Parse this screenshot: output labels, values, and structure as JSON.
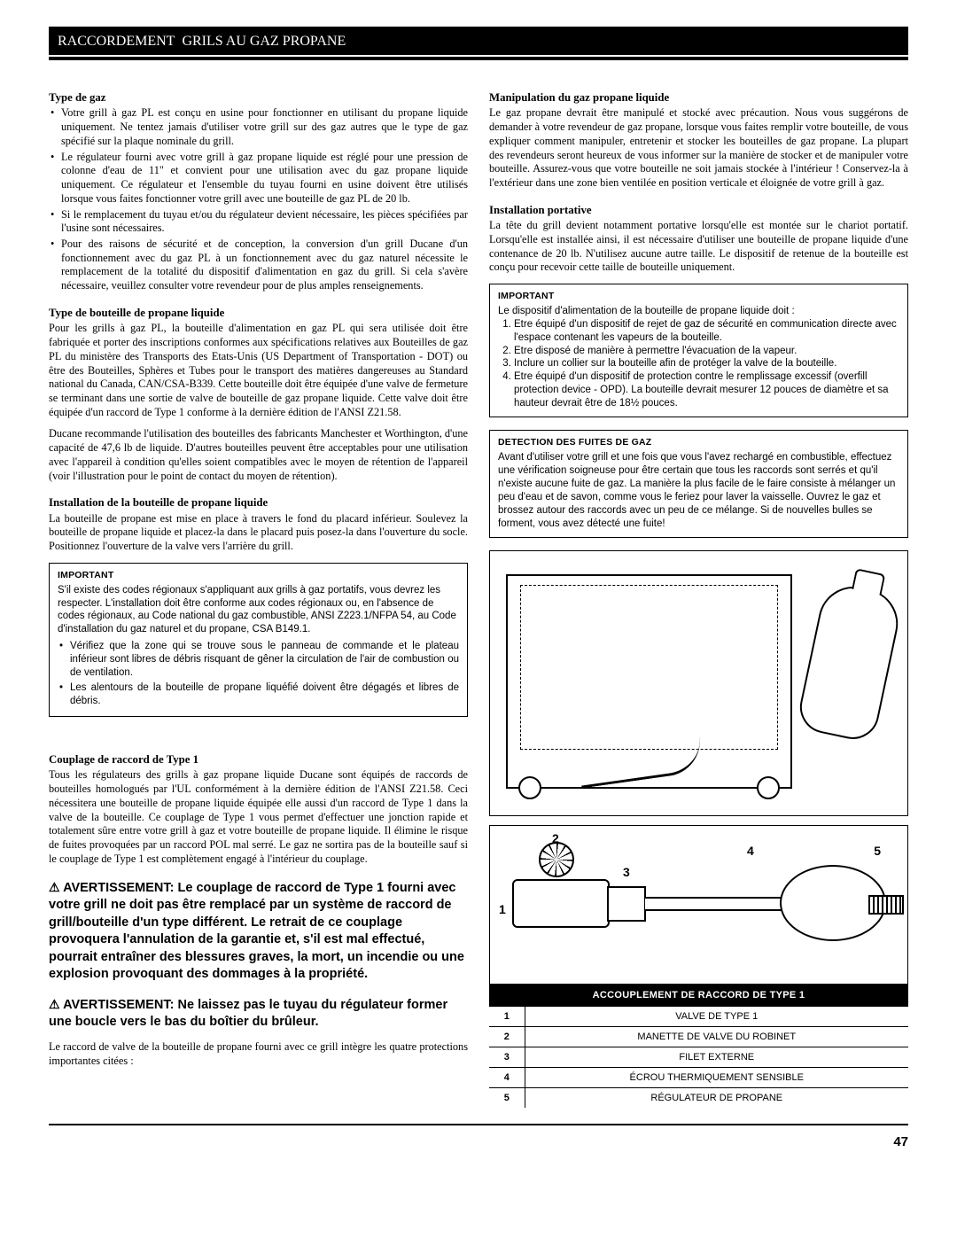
{
  "banner": {
    "main": "RACCORDEMENT",
    "sub": "GRILS AU GAZ PROPANE"
  },
  "left": {
    "s1": {
      "h": "Type de gaz",
      "b1": "Votre grill à gaz PL est conçu en usine pour fonctionner en utilisant du propane liquide uniquement. Ne tentez jamais d'utiliser votre grill sur des gaz autres que le type de gaz spécifié sur la plaque nominale du grill.",
      "b2": "Le régulateur fourni avec votre grill à gaz propane liquide est réglé pour une pression de colonne d'eau de 11\" et convient pour une utilisation avec du gaz propane liquide uniquement. Ce régulateur et l'ensemble du tuyau fourni en usine doivent être utilisés lorsque vous faites fonctionner votre grill avec une bouteille de gaz PL de 20 lb.",
      "b3": "Si le remplacement du tuyau et/ou du régulateur devient nécessaire, les pièces spécifiées par l'usine sont nécessaires.",
      "b4": "Pour des raisons de sécurité et de conception, la conversion d'un grill Ducane d'un fonctionnement avec du gaz PL à un fonctionnement avec du gaz naturel nécessite le remplacement de la totalité du dispositif d'alimentation en gaz du grill. Si cela s'avère nécessaire, veuillez consulter votre revendeur pour de plus amples renseignements."
    },
    "s2": {
      "h": "Type de bouteille de propane liquide",
      "p1": "Pour les grills à gaz PL, la bouteille d'alimentation en gaz PL qui sera utilisée doit être fabriquée et porter des inscriptions conformes aux spécifications relatives aux Bouteilles de gaz PL du ministère des Transports des Etats-Unis (US Department of Transportation - DOT) ou être des Bouteilles, Sphères et Tubes pour le transport des matières dangereuses au Standard national du Canada, CAN/CSA-B339. Cette bouteille doit être équipée d'une valve de fermeture se terminant dans une sortie de valve de bouteille de gaz propane liquide. Cette valve doit être équipée d'un raccord de Type 1 conforme à la dernière édition de l'ANSI Z21.58.",
      "p2": "Ducane recommande l'utilisation des bouteilles des fabricants Manchester et Worthington, d'une capacité de 47,6 lb de liquide. D'autres bouteilles peuvent être acceptables pour une utilisation avec l'appareil à condition qu'elles soient compatibles avec le moyen de rétention de l'appareil (voir l'illustration pour le point de contact du moyen de rétention)."
    },
    "s3": {
      "h": "Installation de la bouteille de propane liquide",
      "p1": "La bouteille de propane est mise en place à travers le fond du placard inférieur. Soulevez la bouteille de propane liquide et placez-la dans le placard puis posez-la dans l'ouverture du socle. Positionnez l'ouverture de la valve vers l'arrière du grill."
    },
    "box1": {
      "h": "IMPORTANT",
      "p": "S'il existe des codes régionaux s'appliquant aux grills à gaz portatifs, vous devrez les respecter. L'installation doit être conforme aux codes régionaux ou, en l'absence de codes régionaux, au Code national du gaz combustible, ANSI Z223.1/NFPA 54, au Code d'installation du gaz naturel et du propane, CSA B149.1.",
      "b1": "Vérifiez que la zone qui se trouve sous le panneau de commande et le plateau inférieur sont libres de débris risquant de gêner la circulation de l'air de combustion ou de ventilation.",
      "b2": "Les alentours de la bouteille de propane liquéfié doivent être dégagés et libres de débris."
    },
    "s4": {
      "h": "Couplage de raccord de Type 1",
      "p1": "Tous les régulateurs des grills à gaz propane liquide Ducane sont équipés de raccords de bouteilles homologués par l'UL conformément à la dernière édition de l'ANSI Z21.58. Ceci nécessitera une bouteille de propane liquide équipée elle aussi d'un raccord de Type 1 dans la valve de la bouteille. Ce couplage de Type 1 vous permet d'effectuer une jonction rapide et totalement sûre entre votre grill à gaz et votre bouteille de propane liquide. Il élimine le risque de fuites provoquées par un raccord POL mal serré. Le gaz ne sortira pas de la bouteille sauf si le couplage de Type 1 est complètement engagé à l'intérieur du couplage."
    },
    "warn1": "AVERTISSEMENT: Le couplage de raccord de Type 1 fourni avec votre grill ne doit pas être remplacé par un système de raccord de grill/bouteille d'un type différent. Le retrait de ce couplage provoquera l'annulation de la garantie et, s'il est mal effectué, pourrait entraîner des blessures graves, la mort, un incendie ou une explosion provoquant des dommages à la propriété.",
    "warn2": "AVERTISSEMENT: Ne laissez pas le tuyau du régulateur former une boucle vers le bas du boîtier du brûleur.",
    "tail": "Le raccord de valve de la bouteille de propane fourni avec ce grill intègre les quatre protections importantes citées :"
  },
  "right": {
    "s1": {
      "h": "Manipulation du gaz propane liquide",
      "p1": "Le gaz propane devrait être manipulé et stocké avec précaution. Nous vous suggérons de demander à votre revendeur de gaz propane, lorsque vous faites remplir votre bouteille, de vous expliquer comment manipuler, entretenir et stocker les bouteilles de gaz propane. La plupart des revendeurs seront heureux de vous informer sur la manière de stocker et de manipuler votre bouteille. Assurez-vous que votre bouteille ne soit jamais stockée à l'intérieur ! Conservez-la à l'extérieur dans une zone bien ventilée en position verticale et éloignée de votre grill à gaz."
    },
    "s2": {
      "h": "Installation portative",
      "p1": "La tête du grill devient notamment portative lorsqu'elle est montée sur le chariot portatif. Lorsqu'elle est installée ainsi, il est nécessaire d'utiliser une bouteille de propane liquide d'une contenance de 20 lb. N'utilisez aucune autre taille. Le dispositif de retenue de la bouteille est conçu pour recevoir cette taille de bouteille uniquement."
    },
    "box2": {
      "h": "IMPORTANT",
      "lead": "Le dispositif d'alimentation de la bouteille de propane liquide doit :",
      "i1": "Etre équipé d'un dispositif de rejet de gaz de sécurité en communication directe avec l'espace contenant les vapeurs de la bouteille.",
      "i2": "Etre disposé de manière à permettre l'évacuation de la vapeur.",
      "i3": "Inclure un collier sur la bouteille afin de protéger la valve de la bouteille.",
      "i4": "Etre équipé d'un dispositif de protection contre le remplissage excessif (overfill protection device - OPD). La bouteille devrait mesurer 12 pouces de diamètre et sa hauteur devrait être de 18½ pouces."
    },
    "box3": {
      "h": "DETECTION DES FUITES DE GAZ",
      "p": "Avant d'utiliser votre grill et une fois que vous l'avez rechargé en combustible, effectuez une vérification soigneuse pour être certain que tous les raccords sont serrés et qu'il n'existe aucune fuite de gaz. La manière la plus facile de le faire consiste à mélanger un peu d'eau et de savon, comme vous le feriez pour laver la vaisselle. Ouvrez le gaz et brossez autour des raccords avec un peu de ce mélange. Si de nouvelles bulles se forment, vous avez détecté une fuite!"
    },
    "parts": {
      "title": "ACCOUPLEMENT DE RACCORD DE TYPE 1",
      "rows": [
        {
          "n": "1",
          "label": "VALVE DE TYPE 1"
        },
        {
          "n": "2",
          "label": "MANETTE DE VALVE DU ROBINET"
        },
        {
          "n": "3",
          "label": "FILET EXTERNE"
        },
        {
          "n": "4",
          "label": "ÉCROU THERMIQUEMENT SENSIBLE"
        },
        {
          "n": "5",
          "label": "RÉGULATEUR DE PROPANE"
        }
      ]
    },
    "figlabels": {
      "l1": "1",
      "l2": "2",
      "l3": "3",
      "l4": "4",
      "l5": "5"
    }
  },
  "pagenum": "47"
}
